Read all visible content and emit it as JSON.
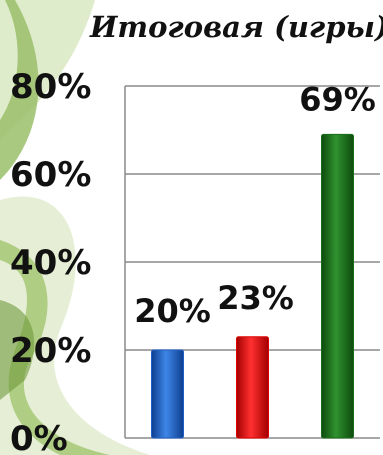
{
  "chart_data": {
    "type": "bar",
    "title": "Итоговая (игры)",
    "categories": [
      "",
      "",
      ""
    ],
    "values": [
      20,
      23,
      69
    ],
    "data_labels": [
      "20%",
      "23%",
      "69%"
    ],
    "colors": [
      "#1f5fc8",
      "#e00000",
      "#1b6e1b"
    ],
    "ylim": [
      0,
      80
    ],
    "yticks": [
      {
        "value": 0,
        "label": "0%"
      },
      {
        "value": 20,
        "label": "20%"
      },
      {
        "value": 40,
        "label": "40%"
      },
      {
        "value": 60,
        "label": "60%"
      },
      {
        "value": 80,
        "label": "80%"
      }
    ],
    "grid": true,
    "legend": "none"
  }
}
